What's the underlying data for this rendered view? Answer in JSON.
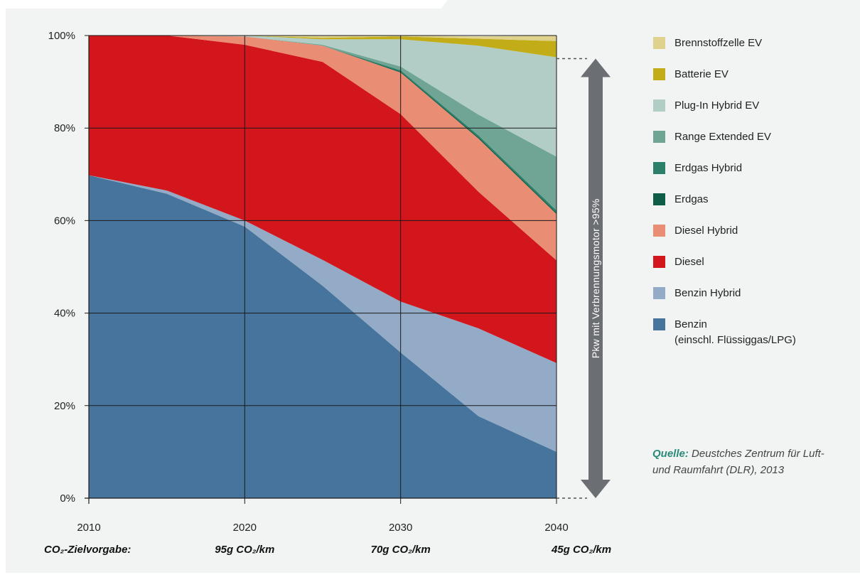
{
  "chart_data": {
    "type": "area",
    "stacked": true,
    "y_unit": "percent",
    "x": [
      2010,
      2015,
      2020,
      2025,
      2030,
      2035,
      2040
    ],
    "x_ticks": [
      "2010",
      "2020",
      "2030",
      "2040"
    ],
    "y_ticks": [
      "0%",
      "20%",
      "40%",
      "60%",
      "80%",
      "100%"
    ],
    "ylim": [
      0,
      100
    ],
    "grid": true,
    "legend_position": "right",
    "series": [
      {
        "name": "Benzin",
        "sub": "(einschl. Flüssiggas/LPG)",
        "color": "#46749c",
        "values": [
          69.8,
          65.8,
          58.7,
          45.9,
          31.5,
          17.7,
          10.0
        ]
      },
      {
        "name": "Benzin Hybrid",
        "color": "#93abc6",
        "values": [
          0.0,
          0.7,
          1.3,
          5.6,
          11.0,
          19.0,
          19.2
        ]
      },
      {
        "name": "Diesel",
        "color": "#d3151c",
        "values": [
          30.2,
          33.5,
          38.0,
          42.8,
          40.5,
          29.5,
          22.2
        ]
      },
      {
        "name": "Diesel Hybrid",
        "color": "#e98d74",
        "values": [
          0.0,
          0.0,
          1.8,
          3.5,
          9.0,
          11.5,
          10.0
        ]
      },
      {
        "name": "Erdgas",
        "color": "#0e5e47",
        "values": [
          0.0,
          0.0,
          0.0,
          0.0,
          0.2,
          0.3,
          0.3
        ]
      },
      {
        "name": "Erdgas Hybrid",
        "color": "#2c7f69",
        "values": [
          0.0,
          0.0,
          0.0,
          0.0,
          0.3,
          0.4,
          0.5
        ]
      },
      {
        "name": "Range Extended EV",
        "color": "#70a595",
        "values": [
          0.0,
          0.0,
          0.0,
          0.2,
          0.8,
          4.5,
          11.6
        ]
      },
      {
        "name": "Plug-In Hybrid EV",
        "color": "#b2cdc5",
        "values": [
          0.0,
          0.0,
          0.2,
          1.2,
          5.9,
          14.9,
          21.5
        ]
      },
      {
        "name": "Batterie EV",
        "color": "#c2ad19",
        "values": [
          0.0,
          0.0,
          0.0,
          0.3,
          0.6,
          1.5,
          3.5
        ]
      },
      {
        "name": "Brennstoffzelle EV",
        "color": "#dfd28c",
        "values": [
          0.0,
          0.0,
          0.0,
          0.4,
          0.2,
          0.5,
          1.2
        ]
      }
    ],
    "co2_targets": {
      "label": "CO₂-Zielvorgabe:",
      "values": [
        "95g CO₂/km",
        "70g CO₂/km",
        "45g CO₂/km"
      ]
    },
    "annotation": {
      "text": "Pkw mit Verbrennungsmotor >95%",
      "color": "#6b6e72",
      "range_percent": [
        0,
        95
      ]
    }
  },
  "source": {
    "label": "Quelle:",
    "text": "Deustches Zentrum für Luft- und Raumfahrt (DLR), 2013"
  },
  "colors": {
    "background": "#f1f4f3",
    "accent": "#2a8a7a"
  }
}
